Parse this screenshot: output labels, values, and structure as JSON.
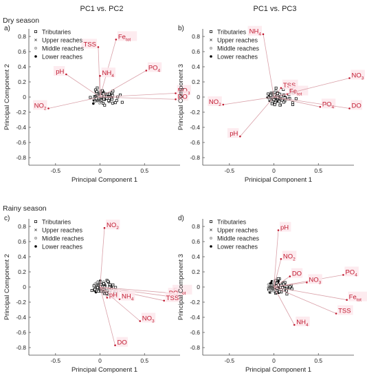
{
  "figure": {
    "col_titles": [
      "PC1 vs. PC2",
      "PC1 vs. PC3"
    ],
    "row_titles": [
      "Dry season",
      "Rainy season"
    ]
  },
  "styles": {
    "arrow_color": "#d9a0a8",
    "label_color": "#c0182e",
    "label_box_color": "#fde8ec",
    "point_fill": {
      "Tributaries": "#ffffff",
      "Upper reaches": "#555555",
      "Middle reaches": "#cfcfcf",
      "Lower reaches": "#000000"
    },
    "point_marker": {
      "Tributaries": "square",
      "Upper reaches": "x",
      "Middle reaches": "circle",
      "Lower reaches": "dot"
    }
  },
  "chart_data": [
    {
      "type": "scatter",
      "panel": "a)",
      "xlabel": "Principal Component 1",
      "ylabel": "Principal Component 2",
      "xlim": [
        -0.8,
        0.9
      ],
      "ylim": [
        -0.9,
        0.9
      ],
      "xticks": [
        -0.5,
        0,
        0.5
      ],
      "yticks": [
        -0.8,
        -0.6,
        -0.4,
        -0.2,
        0,
        0.2,
        0.4,
        0.6,
        0.8
      ],
      "legend": [
        "Tributaries",
        "Upper reaches",
        "Middle reaches",
        "Lower reaches"
      ],
      "legend_position": "top-left",
      "loadings": [
        {
          "label": "Fe",
          "sub": "tot",
          "x": 0.18,
          "y": 0.76
        },
        {
          "label": "TSS",
          "sub": "",
          "x": -0.02,
          "y": 0.66
        },
        {
          "label": "NH",
          "sub": "4",
          "x": 0.0,
          "y": 0.28
        },
        {
          "label": "PO",
          "sub": "4",
          "x": 0.52,
          "y": 0.35
        },
        {
          "label": "pH",
          "sub": "",
          "x": -0.38,
          "y": 0.3
        },
        {
          "label": "NO",
          "sub": "3",
          "x": 0.85,
          "y": 0.05
        },
        {
          "label": "DO",
          "sub": "",
          "x": 0.85,
          "y": -0.03
        },
        {
          "label": "NO",
          "sub": "2",
          "x": -0.58,
          "y": -0.15
        }
      ]
    },
    {
      "type": "scatter",
      "panel": "b)",
      "xlabel": "Prinicipal Component 1",
      "ylabel": "Principal Component 3",
      "xlim": [
        -0.8,
        0.9
      ],
      "ylim": [
        -0.9,
        0.9
      ],
      "xticks": [
        -0.5,
        0,
        0.5
      ],
      "yticks": [
        -0.8,
        -0.6,
        -0.4,
        -0.2,
        0,
        0.2,
        0.4,
        0.6,
        0.8
      ],
      "legend": [
        "Tributaries",
        "Upper reaches",
        "Middle reaches",
        "Lower reaches"
      ],
      "legend_position": "top-right",
      "loadings": [
        {
          "label": "NH",
          "sub": "4",
          "x": -0.12,
          "y": 0.83
        },
        {
          "label": "TSS",
          "sub": "",
          "x": 0.08,
          "y": 0.12
        },
        {
          "label": "Fe",
          "sub": "tot",
          "x": 0.15,
          "y": 0.04
        },
        {
          "label": "NO",
          "sub": "3",
          "x": 0.85,
          "y": 0.25
        },
        {
          "label": "PO",
          "sub": "4",
          "x": 0.52,
          "y": -0.13
        },
        {
          "label": "DO",
          "sub": "",
          "x": 0.85,
          "y": -0.15
        },
        {
          "label": "NO",
          "sub": "2",
          "x": -0.57,
          "y": -0.1
        },
        {
          "label": "pH",
          "sub": "",
          "x": -0.38,
          "y": -0.52
        }
      ]
    },
    {
      "type": "scatter",
      "panel": "c)",
      "xlabel": "Principal Component 1",
      "ylabel": "Principal Component 2",
      "xlim": [
        -0.8,
        0.9
      ],
      "ylim": [
        -0.9,
        0.9
      ],
      "xticks": [
        -0.5,
        0,
        0.5
      ],
      "yticks": [
        -0.8,
        -0.6,
        -0.4,
        -0.2,
        0,
        0.2,
        0.4,
        0.6,
        0.8
      ],
      "legend": [
        "Tributaries",
        "Upper reaches",
        "Middle reaches",
        "Lower reaches"
      ],
      "legend_position": "top-left",
      "loadings": [
        {
          "label": "NO",
          "sub": "2",
          "x": 0.05,
          "y": 0.78
        },
        {
          "label": "Fe",
          "sub": "tot",
          "x": 0.8,
          "y": -0.08
        },
        {
          "label": "PO",
          "sub": "4",
          "x": 0.75,
          "y": -0.12
        },
        {
          "label": "TSS",
          "sub": "",
          "x": 0.72,
          "y": -0.18
        },
        {
          "label": "NH",
          "sub": "4",
          "x": 0.22,
          "y": -0.16
        },
        {
          "label": "pH",
          "sub": "",
          "x": 0.08,
          "y": -0.14
        },
        {
          "label": "NO",
          "sub": "3",
          "x": 0.45,
          "y": -0.45
        },
        {
          "label": "DO",
          "sub": "",
          "x": 0.17,
          "y": -0.77
        }
      ]
    },
    {
      "type": "scatter",
      "panel": "d)",
      "xlabel": "Principal Component 1",
      "ylabel": "Principal Component 3",
      "xlim": [
        -0.8,
        0.9
      ],
      "ylim": [
        -0.9,
        0.9
      ],
      "xticks": [
        -0.5,
        0,
        0.5
      ],
      "yticks": [
        -0.8,
        -0.6,
        -0.4,
        -0.2,
        0,
        0.2,
        0.4,
        0.6,
        0.8
      ],
      "legend": [
        "Tributaries",
        "Upper reaches",
        "Middle reaches",
        "Lower reaches"
      ],
      "legend_position": "top-right",
      "loadings": [
        {
          "label": "pH",
          "sub": "",
          "x": 0.05,
          "y": 0.75
        },
        {
          "label": "NO",
          "sub": "2",
          "x": 0.08,
          "y": 0.37
        },
        {
          "label": "DO",
          "sub": "",
          "x": 0.18,
          "y": 0.14
        },
        {
          "label": "PO",
          "sub": "4",
          "x": 0.78,
          "y": 0.16
        },
        {
          "label": "NO",
          "sub": "3",
          "x": 0.37,
          "y": 0.06
        },
        {
          "label": "Fe",
          "sub": "tot",
          "x": 0.82,
          "y": -0.17
        },
        {
          "label": "TSS",
          "sub": "",
          "x": 0.7,
          "y": -0.35
        },
        {
          "label": "NH",
          "sub": "4",
          "x": 0.23,
          "y": -0.5
        }
      ]
    }
  ]
}
